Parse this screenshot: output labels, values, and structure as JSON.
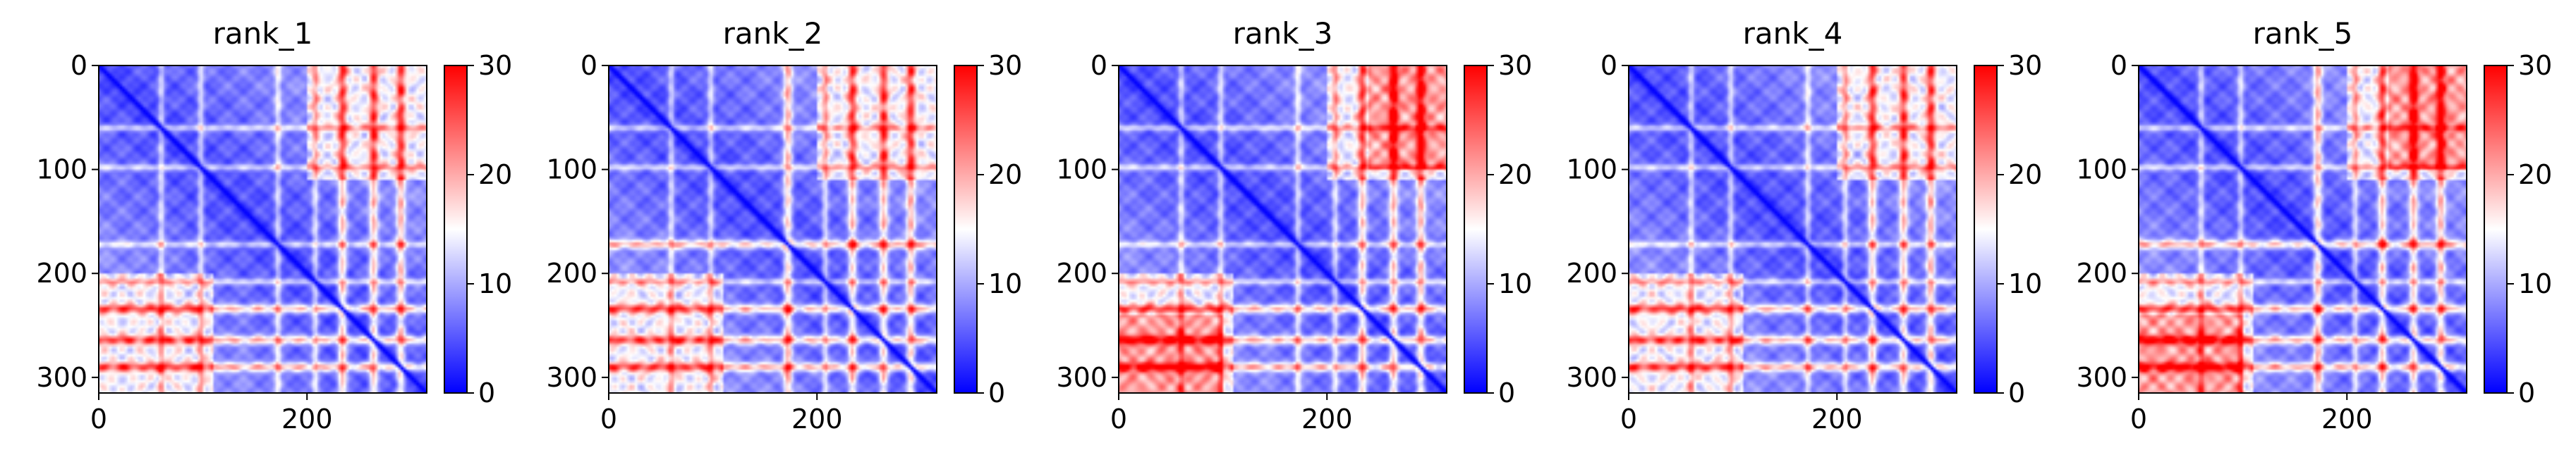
{
  "figure": {
    "colormap": {
      "low": "#0000ff",
      "mid": "#ffffff",
      "high": "#ff0000"
    },
    "colorbar": {
      "min": 0,
      "max": 30,
      "ticks": [
        0,
        10,
        20,
        30
      ]
    }
  },
  "chart_data": [
    {
      "type": "heatmap",
      "title": "rank_1",
      "x_range": [
        0,
        315
      ],
      "y_range": [
        0,
        315
      ],
      "x_ticks": [
        0,
        200
      ],
      "y_ticks": [
        0,
        100,
        200,
        300
      ],
      "value_range": [
        0,
        30
      ],
      "diagonal_value": 0,
      "red_rows": [
        234,
        264,
        290
      ],
      "white_rows": [
        60,
        98,
        172,
        208
      ],
      "red_cols": [],
      "red_blocks": []
    },
    {
      "type": "heatmap",
      "title": "rank_2",
      "x_range": [
        0,
        315
      ],
      "y_range": [
        0,
        315
      ],
      "x_ticks": [
        0,
        200
      ],
      "y_ticks": [
        0,
        100,
        200,
        300
      ],
      "value_range": [
        0,
        30
      ],
      "diagonal_value": 0,
      "red_rows": [
        172,
        234,
        264,
        290
      ],
      "white_rows": [
        60,
        98,
        208
      ],
      "red_cols": [],
      "red_blocks": []
    },
    {
      "type": "heatmap",
      "title": "rank_3",
      "x_range": [
        0,
        315
      ],
      "y_range": [
        0,
        315
      ],
      "x_ticks": [
        0,
        200
      ],
      "y_ticks": [
        0,
        100,
        200,
        300
      ],
      "value_range": [
        0,
        30
      ],
      "diagonal_value": 0,
      "red_rows": [
        234,
        264,
        290
      ],
      "white_rows": [
        60,
        98,
        172,
        208
      ],
      "red_cols": [],
      "red_blocks": [
        [
          0,
          100,
          240,
          315
        ]
      ]
    },
    {
      "type": "heatmap",
      "title": "rank_4",
      "x_range": [
        0,
        315
      ],
      "y_range": [
        0,
        315
      ],
      "x_ticks": [
        0,
        200
      ],
      "y_ticks": [
        0,
        100,
        200,
        300
      ],
      "value_range": [
        0,
        30
      ],
      "diagonal_value": 0,
      "red_rows": [
        234,
        264,
        290
      ],
      "white_rows": [
        60,
        98,
        172,
        208
      ],
      "red_cols": [],
      "red_blocks": []
    },
    {
      "type": "heatmap",
      "title": "rank_5",
      "x_range": [
        0,
        315
      ],
      "y_range": [
        0,
        315
      ],
      "x_ticks": [
        0,
        200
      ],
      "y_ticks": [
        0,
        100,
        200,
        300
      ],
      "value_range": [
        0,
        30
      ],
      "diagonal_value": 0,
      "red_rows": [
        172,
        234,
        264,
        290
      ],
      "white_rows": [
        60,
        98,
        208
      ],
      "red_cols": [],
      "red_blocks": [
        [
          0,
          100,
          240,
          315
        ]
      ]
    }
  ]
}
